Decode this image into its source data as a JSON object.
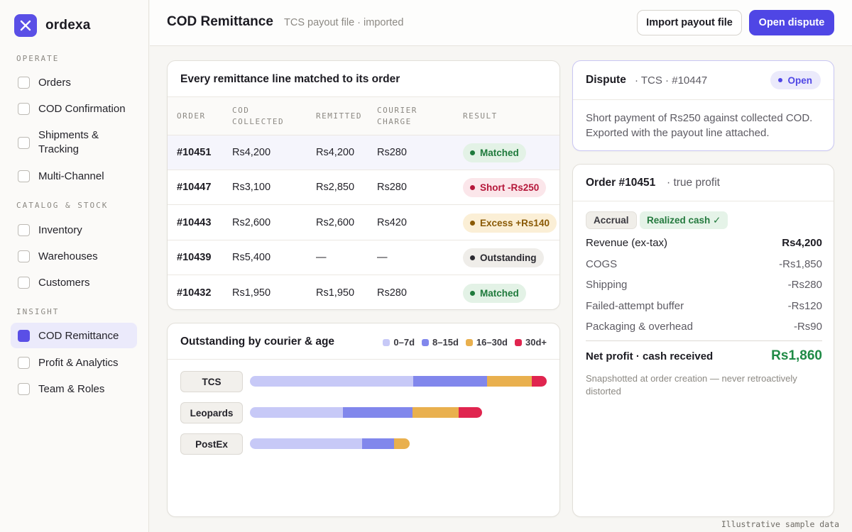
{
  "brand": {
    "name": "ordexa"
  },
  "sidebar": {
    "sections": [
      {
        "label": "OPERATE"
      },
      {
        "label": "CATALOG & STOCK"
      },
      {
        "label": "INSIGHT"
      }
    ],
    "items": [
      {
        "label": "Orders"
      },
      {
        "label": "COD Confirmation"
      },
      {
        "label": "Shipments & Tracking"
      },
      {
        "label": "Multi-Channel"
      },
      {
        "label": "Inventory"
      },
      {
        "label": "Warehouses"
      },
      {
        "label": "Customers"
      },
      {
        "label": "COD Remittance",
        "active": true
      },
      {
        "label": "Profit & Analytics"
      },
      {
        "label": "Team & Roles"
      }
    ]
  },
  "header": {
    "title": "COD Remittance",
    "subtitle": "TCS payout file · imported",
    "import_label": "Import payout file",
    "dispute_label": "Open dispute"
  },
  "remittance": {
    "title": "Every remittance line matched to its order",
    "columns": [
      "ORDER",
      "COD COLLECTED",
      "REMITTED",
      "COURIER CHARGE",
      "RESULT"
    ],
    "rows": [
      {
        "order": "#10451",
        "collected": "Rs4,200",
        "remitted": "Rs4,200",
        "charge": "Rs280",
        "result": "Matched",
        "status": "matched"
      },
      {
        "order": "#10447",
        "collected": "Rs3,100",
        "remitted": "Rs2,850",
        "charge": "Rs280",
        "result": "Short -Rs250",
        "status": "short"
      },
      {
        "order": "#10443",
        "collected": "Rs2,600",
        "remitted": "Rs2,600",
        "charge": "Rs420",
        "result": "Excess +Rs140",
        "status": "excess"
      },
      {
        "order": "#10439",
        "collected": "Rs5,400",
        "remitted": "—",
        "charge": "—",
        "result": "Outstanding",
        "status": "outstanding"
      },
      {
        "order": "#10432",
        "collected": "Rs1,950",
        "remitted": "Rs1,950",
        "charge": "Rs280",
        "result": "Matched",
        "status": "matched"
      }
    ],
    "status_colors": {
      "matched": {
        "bg": "#e3f2e6",
        "fg": "#1f7a3c"
      },
      "short": {
        "bg": "#fbe6ea",
        "fg": "#b5173a"
      },
      "excess": {
        "bg": "#fbefd6",
        "fg": "#8a5a06"
      },
      "outstanding": {
        "bg": "#efede9",
        "fg": "#2a2930"
      }
    }
  },
  "outstanding": {
    "title": "Outstanding by courier & age",
    "legend": [
      {
        "label": "0–7d",
        "color": "#c7c9f7"
      },
      {
        "label": "8–15d",
        "color": "#8187ec"
      },
      {
        "label": "16–30d",
        "color": "#e9b04e"
      },
      {
        "label": "30d+",
        "color": "#e0254f"
      }
    ],
    "couriers": [
      {
        "name": "TCS",
        "segments": [
          0.55,
          0.25,
          0.15,
          0.05
        ]
      },
      {
        "name": "Leopards",
        "segments": [
          0.4,
          0.3,
          0.2,
          0.1
        ]
      },
      {
        "name": "PostEx",
        "segments": [
          0.7,
          0.2,
          0.1,
          0
        ]
      }
    ]
  },
  "dispute": {
    "title": "Dispute",
    "subtitle": "· TCS · #10447",
    "status": "Open",
    "text": "Short payment of Rs250 against collected COD. Exported with the payout line attached."
  },
  "profit": {
    "title": "Order #10451",
    "subtitle": "· true profit",
    "chip_accrual": "Accrual",
    "chip_cash": "Realized cash ✓",
    "lines": [
      {
        "label": "Revenue (ex-tax)",
        "value": "Rs4,200"
      },
      {
        "label": "COGS",
        "value": "-Rs1,850"
      },
      {
        "label": "Shipping",
        "value": "-Rs280"
      },
      {
        "label": "Failed-attempt buffer",
        "value": "-Rs120"
      },
      {
        "label": "Packaging & overhead",
        "value": "-Rs90"
      }
    ],
    "net_label": "Net profit · cash received",
    "net_value": "Rs1,860",
    "note": "Snapshotted at order creation — never retroactively distorted"
  },
  "footnote": "Illustrative sample data"
}
